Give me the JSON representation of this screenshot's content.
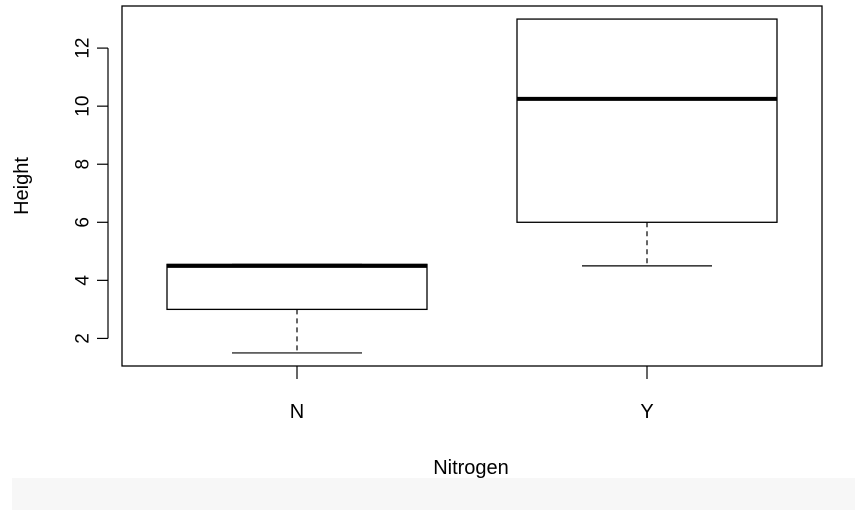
{
  "chart_data": {
    "type": "box",
    "xlabel": "Nitrogen",
    "ylabel": "Height",
    "ylim": [
      1.05,
      13.45
    ],
    "yticks": [
      2,
      4,
      6,
      8,
      10,
      12
    ],
    "grid": false,
    "categories": [
      "N",
      "Y"
    ],
    "boxes": [
      {
        "category": "N",
        "min": 1.5,
        "q1": 3.0,
        "median": 4.5,
        "q3": 4.55,
        "max": 4.55
      },
      {
        "category": "Y",
        "min": 4.5,
        "q1": 6.0,
        "median": 10.25,
        "q3": 13.0,
        "max": 13.0
      }
    ],
    "colors": {
      "stroke": "#000000",
      "box_fill": "#ffffff",
      "background": "#ffffff"
    }
  }
}
